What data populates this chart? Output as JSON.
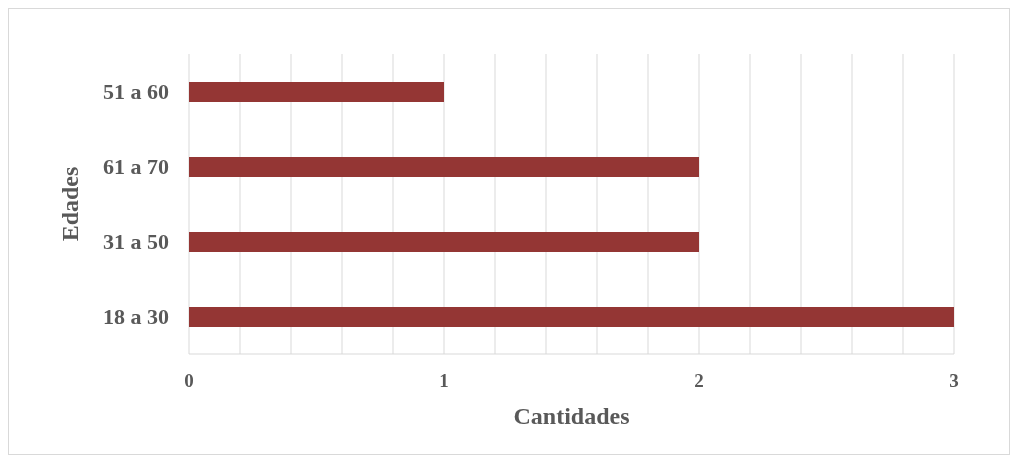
{
  "chart_data": {
    "type": "bar",
    "orientation": "horizontal",
    "categories": [
      "51 a 60",
      "61 a 70",
      "31 a 50",
      "18 a 30"
    ],
    "values": [
      1,
      2,
      2,
      3
    ],
    "color": "#943634",
    "xlabel": "Cantidades",
    "ylabel": "Edades",
    "xlim": [
      0,
      3
    ],
    "xticks": [
      0,
      {
        "value": 0.2,
        "label": null
      },
      {
        "value": 0.4,
        "label": null
      },
      {
        "value": 0.6,
        "label": null
      },
      {
        "value": 0.8,
        "label": null
      },
      1,
      {
        "value": 1.2,
        "label": null
      },
      {
        "value": 1.4,
        "label": null
      },
      {
        "value": 1.6,
        "label": null
      },
      {
        "value": 1.8,
        "label": null
      },
      2,
      {
        "value": 2.2,
        "label": null
      },
      {
        "value": 2.4,
        "label": null
      },
      {
        "value": 2.6,
        "label": null
      },
      {
        "value": 2.8,
        "label": null
      },
      3
    ],
    "grid": "x"
  }
}
